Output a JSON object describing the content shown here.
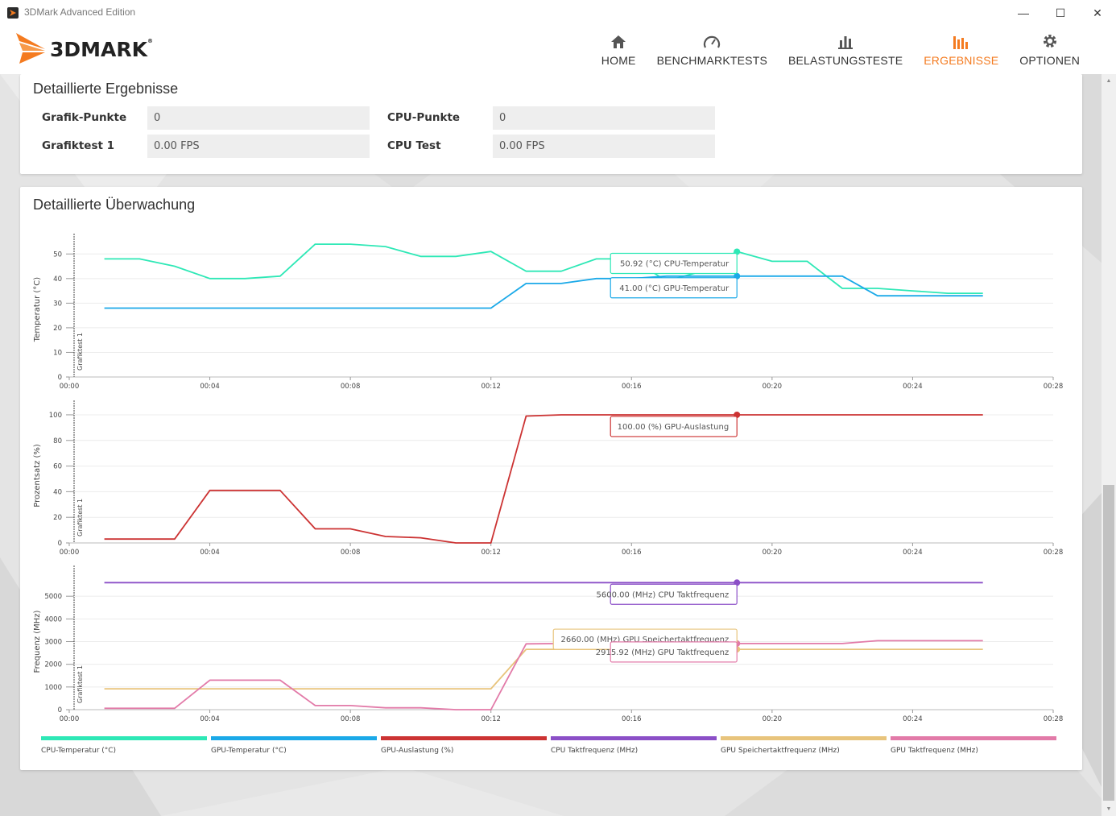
{
  "window": {
    "title": "3DMark Advanced Edition",
    "minimize_glyph": "—",
    "maximize_glyph": "☐",
    "close_glyph": "✕"
  },
  "header": {
    "logo_text": "3DMARK",
    "logo_mark": "®",
    "nav": [
      {
        "label": "HOME",
        "icon": "home-icon",
        "active": false
      },
      {
        "label": "BENCHMARKTESTS",
        "icon": "gauge-icon",
        "active": false
      },
      {
        "label": "BELASTUNGSTESTE",
        "icon": "bar-chart-icon",
        "active": false
      },
      {
        "label": "ERGEBNISSE",
        "icon": "results-icon",
        "active": true
      },
      {
        "label": "OPTIONEN",
        "icon": "gear-icon",
        "active": false
      }
    ]
  },
  "results": {
    "title": "Detaillierte Ergebnisse",
    "rows": [
      {
        "label": "Grafik-Punkte",
        "value": "0"
      },
      {
        "label": "CPU-Punkte",
        "value": "0"
      },
      {
        "label": "Grafiktest 1",
        "value": "0.00 FPS"
      },
      {
        "label": "CPU Test",
        "value": "0.00 FPS"
      }
    ]
  },
  "monitoring": {
    "title": "Detaillierte Überwachung"
  },
  "colors": {
    "accent": "#f47b20",
    "cpu_temp": "#2ee8b6",
    "gpu_temp": "#1ba9e8",
    "gpu_load": "#cc3333",
    "cpu_clock": "#8b4fc7",
    "gpu_mem_clock": "#e8c47c",
    "gpu_clock": "#e27aa8"
  },
  "chart_data": {
    "type": "line",
    "x_ticks": [
      "00:00",
      "00:04",
      "00:08",
      "00:12",
      "00:16",
      "00:20",
      "00:24",
      "00:28"
    ],
    "x_range_seconds": [
      0,
      28
    ],
    "marker_label": "Grafiktest 1",
    "cursor_x_seconds": 19,
    "panels": [
      {
        "ylabel": "Temperatur (°C)",
        "ylim": [
          0,
          55
        ],
        "yticks": [
          0,
          10,
          20,
          30,
          40,
          50
        ],
        "series": [
          {
            "name": "CPU-Temperatur (°C)",
            "color": "#2ee8b6",
            "x": [
              1,
              2,
              3,
              4,
              5,
              6,
              7,
              8,
              9,
              10,
              11,
              12,
              13,
              14,
              15,
              16,
              17,
              18,
              19,
              20,
              21,
              22,
              23,
              24,
              25,
              26
            ],
            "y": [
              48,
              48,
              45,
              40,
              40,
              41,
              54,
              54,
              53,
              49,
              49,
              51,
              43,
              43,
              48,
              48,
              39,
              43,
              51,
              47,
              47,
              36,
              36,
              35,
              34,
              34
            ]
          },
          {
            "name": "GPU-Temperatur (°C)",
            "color": "#1ba9e8",
            "x": [
              1,
              2,
              3,
              4,
              5,
              6,
              7,
              8,
              9,
              10,
              11,
              12,
              13,
              14,
              15,
              16,
              17,
              18,
              19,
              20,
              21,
              22,
              23,
              24,
              25,
              26
            ],
            "y": [
              28,
              28,
              28,
              28,
              28,
              28,
              28,
              28,
              28,
              28,
              28,
              28,
              38,
              38,
              40,
              40,
              41,
              41,
              41,
              41,
              41,
              41,
              33,
              33,
              33,
              33
            ]
          }
        ],
        "tooltips": [
          {
            "text": "50.92 (°C) CPU-Temperatur",
            "color": "#2ee8b6",
            "value": 50.92
          },
          {
            "text": "41.00 (°C) GPU-Temperatur",
            "color": "#1ba9e8",
            "value": 41.0
          }
        ]
      },
      {
        "ylabel": "Prozentsatz (%)",
        "ylim": [
          0,
          105
        ],
        "yticks": [
          0,
          20,
          40,
          60,
          80,
          100
        ],
        "series": [
          {
            "name": "GPU-Auslastung (%)",
            "color": "#cc3333",
            "x": [
              1,
              2,
              3,
              4,
              5,
              6,
              7,
              8,
              9,
              10,
              11,
              12,
              13,
              14,
              15,
              16,
              17,
              18,
              19,
              20,
              21,
              22,
              23,
              24,
              25,
              26
            ],
            "y": [
              3,
              3,
              3,
              41,
              41,
              41,
              11,
              11,
              5,
              4,
              0,
              0,
              99,
              100,
              100,
              100,
              100,
              100,
              100,
              100,
              100,
              100,
              100,
              100,
              100,
              100
            ]
          }
        ],
        "tooltips": [
          {
            "text": "100.00 (%) GPU-Auslastung",
            "color": "#cc3333",
            "value": 100.0
          }
        ]
      },
      {
        "ylabel": "Frequenz (MHz)",
        "ylim": [
          0,
          6000
        ],
        "yticks": [
          0,
          1000,
          2000,
          3000,
          4000,
          5000
        ],
        "series": [
          {
            "name": "CPU Taktfrequenz (MHz)",
            "color": "#8b4fc7",
            "x": [
              1,
              26
            ],
            "y": [
              5600,
              5600
            ]
          },
          {
            "name": "GPU Speichertaktfrequenz (MHz)",
            "color": "#e8c47c",
            "x": [
              1,
              12,
              13,
              19,
              26
            ],
            "y": [
              920,
              920,
              2660,
              2660,
              2660
            ]
          },
          {
            "name": "GPU Taktfrequenz (MHz)",
            "color": "#e27aa8",
            "x": [
              1,
              3,
              4,
              5,
              6,
              7,
              8,
              9,
              10,
              11,
              12,
              13,
              14,
              19,
              22,
              23,
              26
            ],
            "y": [
              60,
              60,
              1300,
              1300,
              1300,
              180,
              180,
              80,
              80,
              0,
              0,
              2900,
              2916,
              2916,
              2916,
              3040,
              3040
            ]
          }
        ],
        "tooltips": [
          {
            "text": "5600.00 (MHz) CPU Taktfrequenz",
            "color": "#8b4fc7",
            "value": 5600.0
          },
          {
            "text": "2660.00 (MHz) GPU Speichertaktfrequenz",
            "color": "#e8c47c",
            "value": 2660.0
          },
          {
            "text": "2915.92 (MHz) GPU Taktfrequenz",
            "color": "#e27aa8",
            "value": 2915.92
          }
        ]
      }
    ],
    "legend": [
      {
        "name": "CPU-Temperatur (°C)",
        "color": "#2ee8b6"
      },
      {
        "name": "GPU-Temperatur (°C)",
        "color": "#1ba9e8"
      },
      {
        "name": "GPU-Auslastung (%)",
        "color": "#cc3333"
      },
      {
        "name": "CPU Taktfrequenz (MHz)",
        "color": "#8b4fc7"
      },
      {
        "name": "GPU Speichertaktfrequenz (MHz)",
        "color": "#e8c47c"
      },
      {
        "name": "GPU Taktfrequenz (MHz)",
        "color": "#e27aa8"
      }
    ]
  }
}
